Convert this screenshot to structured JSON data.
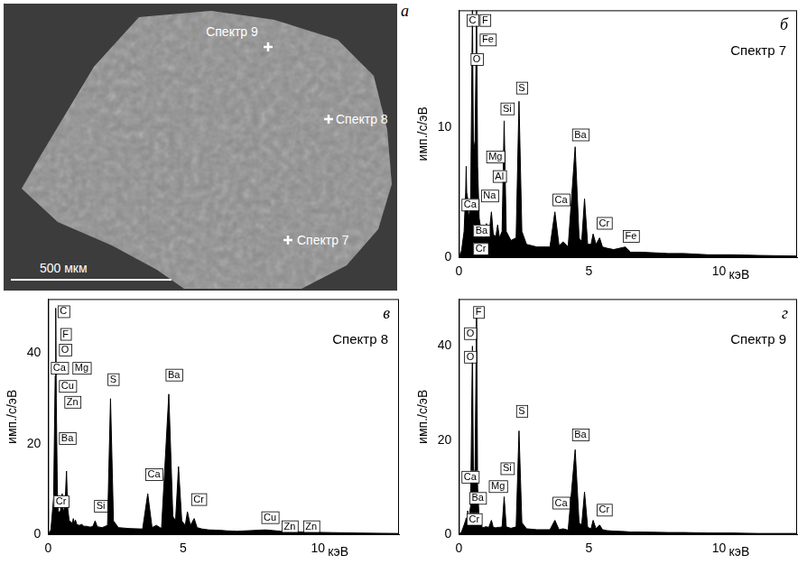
{
  "panel_a": {
    "letter": "а",
    "scale_bar": "500 мкм",
    "markers": [
      {
        "label": "Спектр 9"
      },
      {
        "label": "Спектр 8"
      },
      {
        "label": "Спектр 7"
      }
    ]
  },
  "chart_data": [
    {
      "type": "line",
      "letter": "б",
      "title": "Спектр 7",
      "x_label": "кэВ",
      "y_label": "имп./с/эВ",
      "color": "#000000",
      "xlim": [
        0,
        13
      ],
      "xticks": [
        0,
        5,
        10
      ],
      "ylim": [
        0,
        19
      ],
      "yticks": [
        0,
        10
      ],
      "grid": false,
      "x": [
        0,
        0.1,
        0.2,
        0.26,
        0.28,
        0.3,
        0.34,
        0.37,
        0.45,
        0.52,
        0.56,
        0.62,
        0.68,
        0.72,
        0.78,
        0.9,
        0.93,
        0.97,
        1.01,
        1.06,
        1.15,
        1.25,
        1.32,
        1.42,
        1.49,
        1.56,
        1.66,
        1.74,
        1.82,
        2.0,
        2.2,
        2.31,
        2.42,
        2.6,
        3.0,
        3.5,
        3.69,
        3.85,
        4.01,
        4.2,
        4.47,
        4.62,
        4.72,
        4.83,
        4.95,
        5.08,
        5.16,
        5.27,
        5.41,
        5.52,
        5.7,
        5.95,
        6.4,
        6.6,
        7.0,
        8.05,
        8.64,
        9.57,
        10.5,
        11.5,
        13
      ],
      "values": [
        0,
        0.5,
        2,
        5,
        7,
        5,
        4.5,
        3,
        4,
        19,
        8,
        9,
        19,
        7,
        3,
        1.5,
        1.5,
        1.6,
        2,
        2.6,
        1.6,
        3.5,
        1.8,
        1.6,
        2.5,
        1.5,
        2,
        10.5,
        2,
        1.3,
        1.5,
        12,
        2,
        1,
        0.8,
        0.8,
        3.5,
        0.9,
        1.2,
        0.8,
        8.5,
        1.5,
        1.2,
        4.5,
        1,
        1,
        1.8,
        1,
        1.5,
        0.8,
        0.7,
        0.6,
        0.8,
        0.4,
        0.4,
        0.3,
        0.3,
        0.2,
        0.2,
        0.15,
        0.1
      ],
      "peak_labels": [
        {
          "text": "C",
          "x": 0.3,
          "y": 17.8
        },
        {
          "text": "F",
          "x": 0.8,
          "y": 17.8
        },
        {
          "text": "Fe",
          "x": 0.8,
          "y": 16.3
        },
        {
          "text": "O",
          "x": 0.45,
          "y": 14.8
        },
        {
          "text": "Mg",
          "x": 1.05,
          "y": 7.3
        },
        {
          "text": "Al",
          "x": 1.3,
          "y": 5.8
        },
        {
          "text": "Na",
          "x": 0.85,
          "y": 4.3
        },
        {
          "text": "Ca",
          "x": 0.1,
          "y": 3.6
        },
        {
          "text": "Ba",
          "x": 0.55,
          "y": 1.6
        },
        {
          "text": "Cr",
          "x": 0.55,
          "y": 0.2
        },
        {
          "text": "Si",
          "x": 1.6,
          "y": 11
        },
        {
          "text": "S",
          "x": 2.2,
          "y": 12.6
        },
        {
          "text": "Ca",
          "x": 3.6,
          "y": 4
        },
        {
          "text": "Ba",
          "x": 4.35,
          "y": 9
        },
        {
          "text": "Cr",
          "x": 5.3,
          "y": 2.2
        },
        {
          "text": "Fe",
          "x": 6.3,
          "y": 1.2
        }
      ]
    },
    {
      "type": "line",
      "letter": "в",
      "title": "Спектр 8",
      "x_label": "кэВ",
      "y_label": "имп./с/эВ",
      "color": "#000000",
      "xlim": [
        0,
        13
      ],
      "xticks": [
        0,
        5,
        10
      ],
      "ylim": [
        0,
        52
      ],
      "yticks": [
        0,
        20,
        40
      ],
      "grid": false,
      "x": [
        0,
        0.1,
        0.2,
        0.26,
        0.28,
        0.3,
        0.34,
        0.37,
        0.45,
        0.52,
        0.56,
        0.62,
        0.68,
        0.72,
        0.78,
        0.9,
        0.93,
        0.97,
        1.01,
        1.06,
        1.15,
        1.25,
        1.32,
        1.42,
        1.49,
        1.56,
        1.66,
        1.74,
        1.82,
        2.0,
        2.2,
        2.31,
        2.42,
        2.6,
        3.0,
        3.5,
        3.69,
        3.85,
        4.01,
        4.2,
        4.47,
        4.62,
        4.72,
        4.83,
        4.95,
        5.08,
        5.16,
        5.27,
        5.41,
        5.52,
        5.7,
        5.95,
        6.4,
        6.6,
        7.0,
        8.05,
        8.64,
        9.57,
        10.5,
        11.5,
        13
      ],
      "values": [
        0,
        1,
        8,
        35,
        50,
        30,
        10,
        5,
        5,
        9,
        5,
        6,
        14,
        6,
        3,
        2.5,
        3.5,
        2.5,
        3.2,
        2.2,
        2,
        2.2,
        1.8,
        1.8,
        1.7,
        1.6,
        1.8,
        3,
        1.7,
        1.5,
        2,
        30,
        3,
        1.5,
        1.3,
        1.2,
        9,
        1.5,
        2,
        1.3,
        31,
        4,
        3,
        15,
        3,
        2,
        5,
        2,
        3.5,
        1.5,
        1.2,
        1,
        0.9,
        0.8,
        0.7,
        1,
        0.7,
        0.5,
        0.4,
        0.3,
        0.2
      ],
      "peak_labels": [
        {
          "text": "C",
          "x": 0.35,
          "y": 48
        },
        {
          "text": "F",
          "x": 0.45,
          "y": 43
        },
        {
          "text": "O",
          "x": 0.4,
          "y": 39.5
        },
        {
          "text": "Ca",
          "x": 0.1,
          "y": 35.5
        },
        {
          "text": "Mg",
          "x": 0.9,
          "y": 35.5
        },
        {
          "text": "Cu",
          "x": 0.4,
          "y": 31.5
        },
        {
          "text": "Zn",
          "x": 0.6,
          "y": 28
        },
        {
          "text": "Ba",
          "x": 0.4,
          "y": 20
        },
        {
          "text": "Cr",
          "x": 0.2,
          "y": 6
        },
        {
          "text": "Si",
          "x": 1.7,
          "y": 5
        },
        {
          "text": "S",
          "x": 2.2,
          "y": 33
        },
        {
          "text": "Ca",
          "x": 3.6,
          "y": 12
        },
        {
          "text": "Ba",
          "x": 4.35,
          "y": 34
        },
        {
          "text": "Cr",
          "x": 5.3,
          "y": 6.5
        },
        {
          "text": "Cu",
          "x": 7.9,
          "y": 2.5
        },
        {
          "text": "Zn",
          "x": 8.65,
          "y": 0.5
        },
        {
          "text": "Zn",
          "x": 9.45,
          "y": 0.5
        }
      ]
    },
    {
      "type": "line",
      "letter": "г",
      "title": "Спектр 9",
      "x_label": "кэВ",
      "y_label": "имп./с/эВ",
      "color": "#000000",
      "xlim": [
        0,
        13
      ],
      "xticks": [
        0,
        5,
        10
      ],
      "ylim": [
        0,
        50
      ],
      "yticks": [
        0,
        20,
        40
      ],
      "grid": false,
      "x": [
        0,
        0.1,
        0.2,
        0.26,
        0.28,
        0.3,
        0.34,
        0.37,
        0.45,
        0.52,
        0.56,
        0.62,
        0.68,
        0.72,
        0.78,
        0.9,
        0.93,
        0.97,
        1.01,
        1.06,
        1.15,
        1.25,
        1.32,
        1.42,
        1.49,
        1.56,
        1.66,
        1.74,
        1.82,
        2.0,
        2.2,
        2.31,
        2.42,
        2.6,
        3.0,
        3.5,
        3.69,
        3.85,
        4.01,
        4.2,
        4.47,
        4.62,
        4.72,
        4.83,
        4.95,
        5.08,
        5.16,
        5.27,
        5.41,
        5.52,
        5.7,
        5.95,
        6.4,
        6.6,
        7.0,
        8.05,
        8.64,
        9.57,
        10.5,
        11.5,
        13
      ],
      "values": [
        0,
        0.5,
        2,
        3,
        3.5,
        3,
        5,
        3,
        6,
        40,
        12,
        14,
        48,
        10,
        3,
        1.5,
        1.5,
        1.5,
        1.6,
        1.6,
        1.5,
        3,
        1.5,
        1.4,
        1.5,
        1.5,
        1.6,
        8,
        1.6,
        1.3,
        1.6,
        22,
        2.5,
        1.2,
        1,
        1,
        3,
        1,
        1.2,
        0.9,
        18,
        2.5,
        2,
        9,
        1.5,
        1.2,
        3,
        1.2,
        2,
        1,
        0.8,
        0.7,
        0.6,
        0.5,
        0.5,
        0.4,
        0.4,
        0.3,
        0.3,
        0.2,
        0.2
      ],
      "peak_labels": [
        {
          "text": "F",
          "x": 0.55,
          "y": 46
        },
        {
          "text": "O",
          "x": 0.2,
          "y": 41.5
        },
        {
          "text": "O",
          "x": 0.2,
          "y": 36.5
        },
        {
          "text": "Ca",
          "x": 0.1,
          "y": 11
        },
        {
          "text": "Mg",
          "x": 1.15,
          "y": 9
        },
        {
          "text": "Si",
          "x": 1.6,
          "y": 12.8
        },
        {
          "text": "Ba",
          "x": 0.4,
          "y": 6.5
        },
        {
          "text": "Cr",
          "x": 0.3,
          "y": 2
        },
        {
          "text": "S",
          "x": 2.2,
          "y": 25
        },
        {
          "text": "Ba",
          "x": 4.35,
          "y": 20
        },
        {
          "text": "Ca",
          "x": 3.6,
          "y": 5.5
        },
        {
          "text": "Cr",
          "x": 5.3,
          "y": 4
        }
      ]
    }
  ]
}
